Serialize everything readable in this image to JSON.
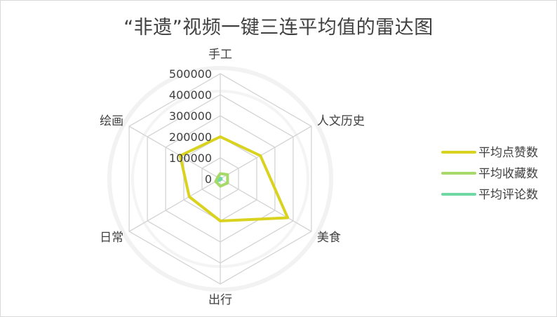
{
  "chart_data": {
    "type": "radar",
    "title": "“非遗”视频一键三连平均值的雷达图",
    "categories": [
      "手工",
      "人文历史",
      "美食",
      "出行",
      "日常",
      "绘画"
    ],
    "radial_axis": {
      "min": 0,
      "max": 500000,
      "ticks": [
        0,
        100000,
        200000,
        300000,
        400000,
        500000
      ],
      "tick_labels": [
        "0",
        "100000",
        "200000",
        "300000",
        "400000",
        "500000"
      ]
    },
    "series": [
      {
        "name": "平均点赞数",
        "color": "#d9d21f",
        "values": [
          200000,
          220000,
          370000,
          200000,
          170000,
          220000
        ]
      },
      {
        "name": "平均收藏数",
        "color": "#a6d86a",
        "values": [
          25000,
          40000,
          40000,
          35000,
          25000,
          15000
        ]
      },
      {
        "name": "平均评论数",
        "color": "#6fd8a3",
        "values": [
          3000,
          5000,
          5000,
          5000,
          25000,
          3000
        ]
      }
    ],
    "legend": "right",
    "grid": true
  }
}
